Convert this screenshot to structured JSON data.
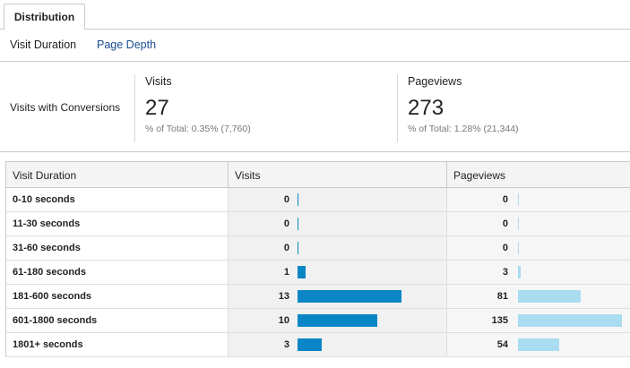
{
  "tabs": {
    "distribution_label": "Distribution"
  },
  "subtabs": {
    "visit_duration": "Visit Duration",
    "page_depth": "Page Depth"
  },
  "summary": {
    "segment_label": "Visits with Conversions",
    "visits": {
      "title": "Visits",
      "value": "27",
      "total": "% of Total: 0.35% (7,760)"
    },
    "pageviews": {
      "title": "Pageviews",
      "value": "273",
      "total": "% of Total: 1.28% (21,344)"
    }
  },
  "table": {
    "headers": {
      "duration": "Visit Duration",
      "visits": "Visits",
      "pageviews": "Pageviews"
    },
    "rows": [
      {
        "label": "0-10 seconds",
        "visits": "0",
        "pageviews": "0"
      },
      {
        "label": "11-30 seconds",
        "visits": "0",
        "pageviews": "0"
      },
      {
        "label": "31-60 seconds",
        "visits": "0",
        "pageviews": "0"
      },
      {
        "label": "61-180 seconds",
        "visits": "1",
        "pageviews": "3"
      },
      {
        "label": "181-600 seconds",
        "visits": "13",
        "pageviews": "81"
      },
      {
        "label": "601-1800 seconds",
        "visits": "10",
        "pageviews": "135"
      },
      {
        "label": "1801+ seconds",
        "visits": "3",
        "pageviews": "54"
      }
    ]
  },
  "colors": {
    "visits_bar": "#0a86c6",
    "pageviews_bar": "#a9dcf1",
    "link": "#1a4c8e"
  }
}
